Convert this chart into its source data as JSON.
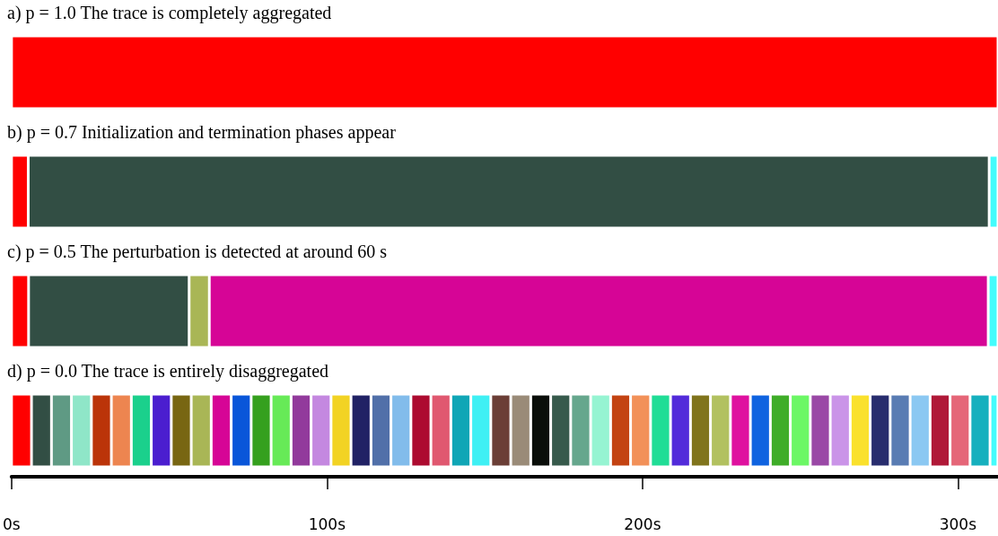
{
  "chart_data": {
    "type": "bar",
    "orientation": "horizontal",
    "stacked": true,
    "categories": [
      null,
      null,
      null,
      null
    ],
    "xlim": [
      0,
      312.7
    ],
    "xticks": [
      {
        "value": 0,
        "label": "0s"
      },
      {
        "value": 100,
        "label": "100s"
      },
      {
        "value": 200,
        "label": "200s"
      },
      {
        "value": 300,
        "label": "300s"
      }
    ],
    "annotations": [
      "a) p = 1.0 The trace is completely aggregated",
      "b) p = 0.7 Initialization and termination phases appear",
      "c) p = 0.5 The perturbation is detected at around 60 s",
      "d) p = 0.0 The trace is entirely disaggregated"
    ],
    "series": [
      {
        "values": [
          312.7,
          5.3,
          5.4,
          6.33
        ],
        "colors": [
          "#ff0000",
          "#ff0000",
          "#ff0000",
          "#ff0000"
        ]
      },
      {
        "values": [
          null,
          304.6,
          50.9,
          6.33
        ],
        "colors": [
          null,
          "#324e44",
          "#324e44",
          "#324e44"
        ]
      },
      {
        "values": [
          null,
          2.8,
          6.4,
          6.33
        ],
        "colors": [
          null,
          "#44fcfc",
          "#a9b656",
          "#5f9a84"
        ]
      },
      {
        "values": [
          null,
          null,
          246.9,
          6.33
        ],
        "colors": [
          null,
          null,
          "#d60596",
          "#8fe6c8"
        ]
      },
      {
        "values": [
          null,
          null,
          3.1,
          6.33
        ],
        "colors": [
          null,
          null,
          "#44fcfc",
          "#bb3409"
        ]
      },
      {
        "values": [
          null,
          null,
          null,
          6.33
        ],
        "colors": [
          null,
          null,
          null,
          "#ed8550"
        ]
      },
      {
        "values": [
          null,
          null,
          null,
          6.33
        ],
        "colors": [
          null,
          null,
          null,
          "#1bd08c"
        ]
      },
      {
        "values": [
          null,
          null,
          null,
          6.33
        ],
        "colors": [
          null,
          null,
          null,
          "#4b1ecf"
        ]
      },
      {
        "values": [
          null,
          null,
          null,
          6.33
        ],
        "colors": [
          null,
          null,
          null,
          "#786612"
        ]
      },
      {
        "values": [
          null,
          null,
          null,
          6.33
        ],
        "colors": [
          null,
          null,
          null,
          "#a9b656"
        ]
      },
      {
        "values": [
          null,
          null,
          null,
          6.33
        ],
        "colors": [
          null,
          null,
          null,
          "#d60596"
        ]
      },
      {
        "values": [
          null,
          null,
          null,
          6.33
        ],
        "colors": [
          null,
          null,
          null,
          "#0956d9"
        ]
      },
      {
        "values": [
          null,
          null,
          null,
          6.33
        ],
        "colors": [
          null,
          null,
          null,
          "#35a01e"
        ]
      },
      {
        "values": [
          null,
          null,
          null,
          6.33
        ],
        "colors": [
          null,
          null,
          null,
          "#67ea57"
        ]
      },
      {
        "values": [
          null,
          null,
          null,
          6.33
        ],
        "colors": [
          null,
          null,
          null,
          "#923a9c"
        ]
      },
      {
        "values": [
          null,
          null,
          null,
          6.33
        ],
        "colors": [
          null,
          null,
          null,
          "#c488e0"
        ]
      },
      {
        "values": [
          null,
          null,
          null,
          6.33
        ],
        "colors": [
          null,
          null,
          null,
          "#f2d324"
        ]
      },
      {
        "values": [
          null,
          null,
          null,
          6.33
        ],
        "colors": [
          null,
          null,
          null,
          "#212265"
        ]
      },
      {
        "values": [
          null,
          null,
          null,
          6.33
        ],
        "colors": [
          null,
          null,
          null,
          "#5170a9"
        ]
      },
      {
        "values": [
          null,
          null,
          null,
          6.33
        ],
        "colors": [
          null,
          null,
          null,
          "#82bceb"
        ]
      },
      {
        "values": [
          null,
          null,
          null,
          6.33
        ],
        "colors": [
          null,
          null,
          null,
          "#ad0b30"
        ]
      },
      {
        "values": [
          null,
          null,
          null,
          6.33
        ],
        "colors": [
          null,
          null,
          null,
          "#e05870"
        ]
      },
      {
        "values": [
          null,
          null,
          null,
          6.33
        ],
        "colors": [
          null,
          null,
          null,
          "#10a6b6"
        ]
      },
      {
        "values": [
          null,
          null,
          null,
          6.33
        ],
        "colors": [
          null,
          null,
          null,
          "#3ff0f4"
        ]
      },
      {
        "values": [
          null,
          null,
          null,
          6.33
        ],
        "colors": [
          null,
          null,
          null,
          "#6b3e36"
        ]
      },
      {
        "values": [
          null,
          null,
          null,
          6.33
        ],
        "colors": [
          null,
          null,
          null,
          "#9a8b78"
        ]
      },
      {
        "values": [
          null,
          null,
          null,
          6.33
        ],
        "colors": [
          null,
          null,
          null,
          "#0a0e0a"
        ]
      },
      {
        "values": [
          null,
          null,
          null,
          6.33
        ],
        "colors": [
          null,
          null,
          null,
          "#375a4c"
        ]
      },
      {
        "values": [
          null,
          null,
          null,
          6.33
        ],
        "colors": [
          null,
          null,
          null,
          "#66a78d"
        ]
      },
      {
        "values": [
          null,
          null,
          null,
          6.33
        ],
        "colors": [
          null,
          null,
          null,
          "#96f4d2"
        ]
      },
      {
        "values": [
          null,
          null,
          null,
          6.33
        ],
        "colors": [
          null,
          null,
          null,
          "#c34312"
        ]
      },
      {
        "values": [
          null,
          null,
          null,
          6.33
        ],
        "colors": [
          null,
          null,
          null,
          "#f29159"
        ]
      },
      {
        "values": [
          null,
          null,
          null,
          6.33
        ],
        "colors": [
          null,
          null,
          null,
          "#20dd96"
        ]
      },
      {
        "values": [
          null,
          null,
          null,
          6.33
        ],
        "colors": [
          null,
          null,
          null,
          "#522bda"
        ]
      },
      {
        "values": [
          null,
          null,
          null,
          6.33
        ],
        "colors": [
          null,
          null,
          null,
          "#80741c"
        ]
      },
      {
        "values": [
          null,
          null,
          null,
          6.33
        ],
        "colors": [
          null,
          null,
          null,
          "#b2c160"
        ]
      },
      {
        "values": [
          null,
          null,
          null,
          6.33
        ],
        "colors": [
          null,
          null,
          null,
          "#df119f"
        ]
      },
      {
        "values": [
          null,
          null,
          null,
          6.33
        ],
        "colors": [
          null,
          null,
          null,
          "#0f63e0"
        ]
      },
      {
        "values": [
          null,
          null,
          null,
          6.33
        ],
        "colors": [
          null,
          null,
          null,
          "#3fad28"
        ]
      },
      {
        "values": [
          null,
          null,
          null,
          6.33
        ],
        "colors": [
          null,
          null,
          null,
          "#6cf765"
        ]
      },
      {
        "values": [
          null,
          null,
          null,
          6.33
        ],
        "colors": [
          null,
          null,
          null,
          "#9a48a6"
        ]
      },
      {
        "values": [
          null,
          null,
          null,
          6.33
        ],
        "colors": [
          null,
          null,
          null,
          "#ca94e8"
        ]
      },
      {
        "values": [
          null,
          null,
          null,
          6.33
        ],
        "colors": [
          null,
          null,
          null,
          "#fae12d"
        ]
      },
      {
        "values": [
          null,
          null,
          null,
          6.33
        ],
        "colors": [
          null,
          null,
          null,
          "#282d6e"
        ]
      },
      {
        "values": [
          null,
          null,
          null,
          6.33
        ],
        "colors": [
          null,
          null,
          null,
          "#597cb3"
        ]
      },
      {
        "values": [
          null,
          null,
          null,
          6.33
        ],
        "colors": [
          null,
          null,
          null,
          "#8bc8f2"
        ]
      },
      {
        "values": [
          null,
          null,
          null,
          6.33
        ],
        "colors": [
          null,
          null,
          null,
          "#b01938"
        ]
      },
      {
        "values": [
          null,
          null,
          null,
          6.33
        ],
        "colors": [
          null,
          null,
          null,
          "#e56678"
        ]
      },
      {
        "values": [
          null,
          null,
          null,
          6.33
        ],
        "colors": [
          null,
          null,
          null,
          "#16b0be"
        ]
      },
      {
        "values": [
          null,
          null,
          null,
          2.5
        ],
        "colors": [
          null,
          null,
          null,
          "#44fcfc"
        ]
      }
    ]
  }
}
